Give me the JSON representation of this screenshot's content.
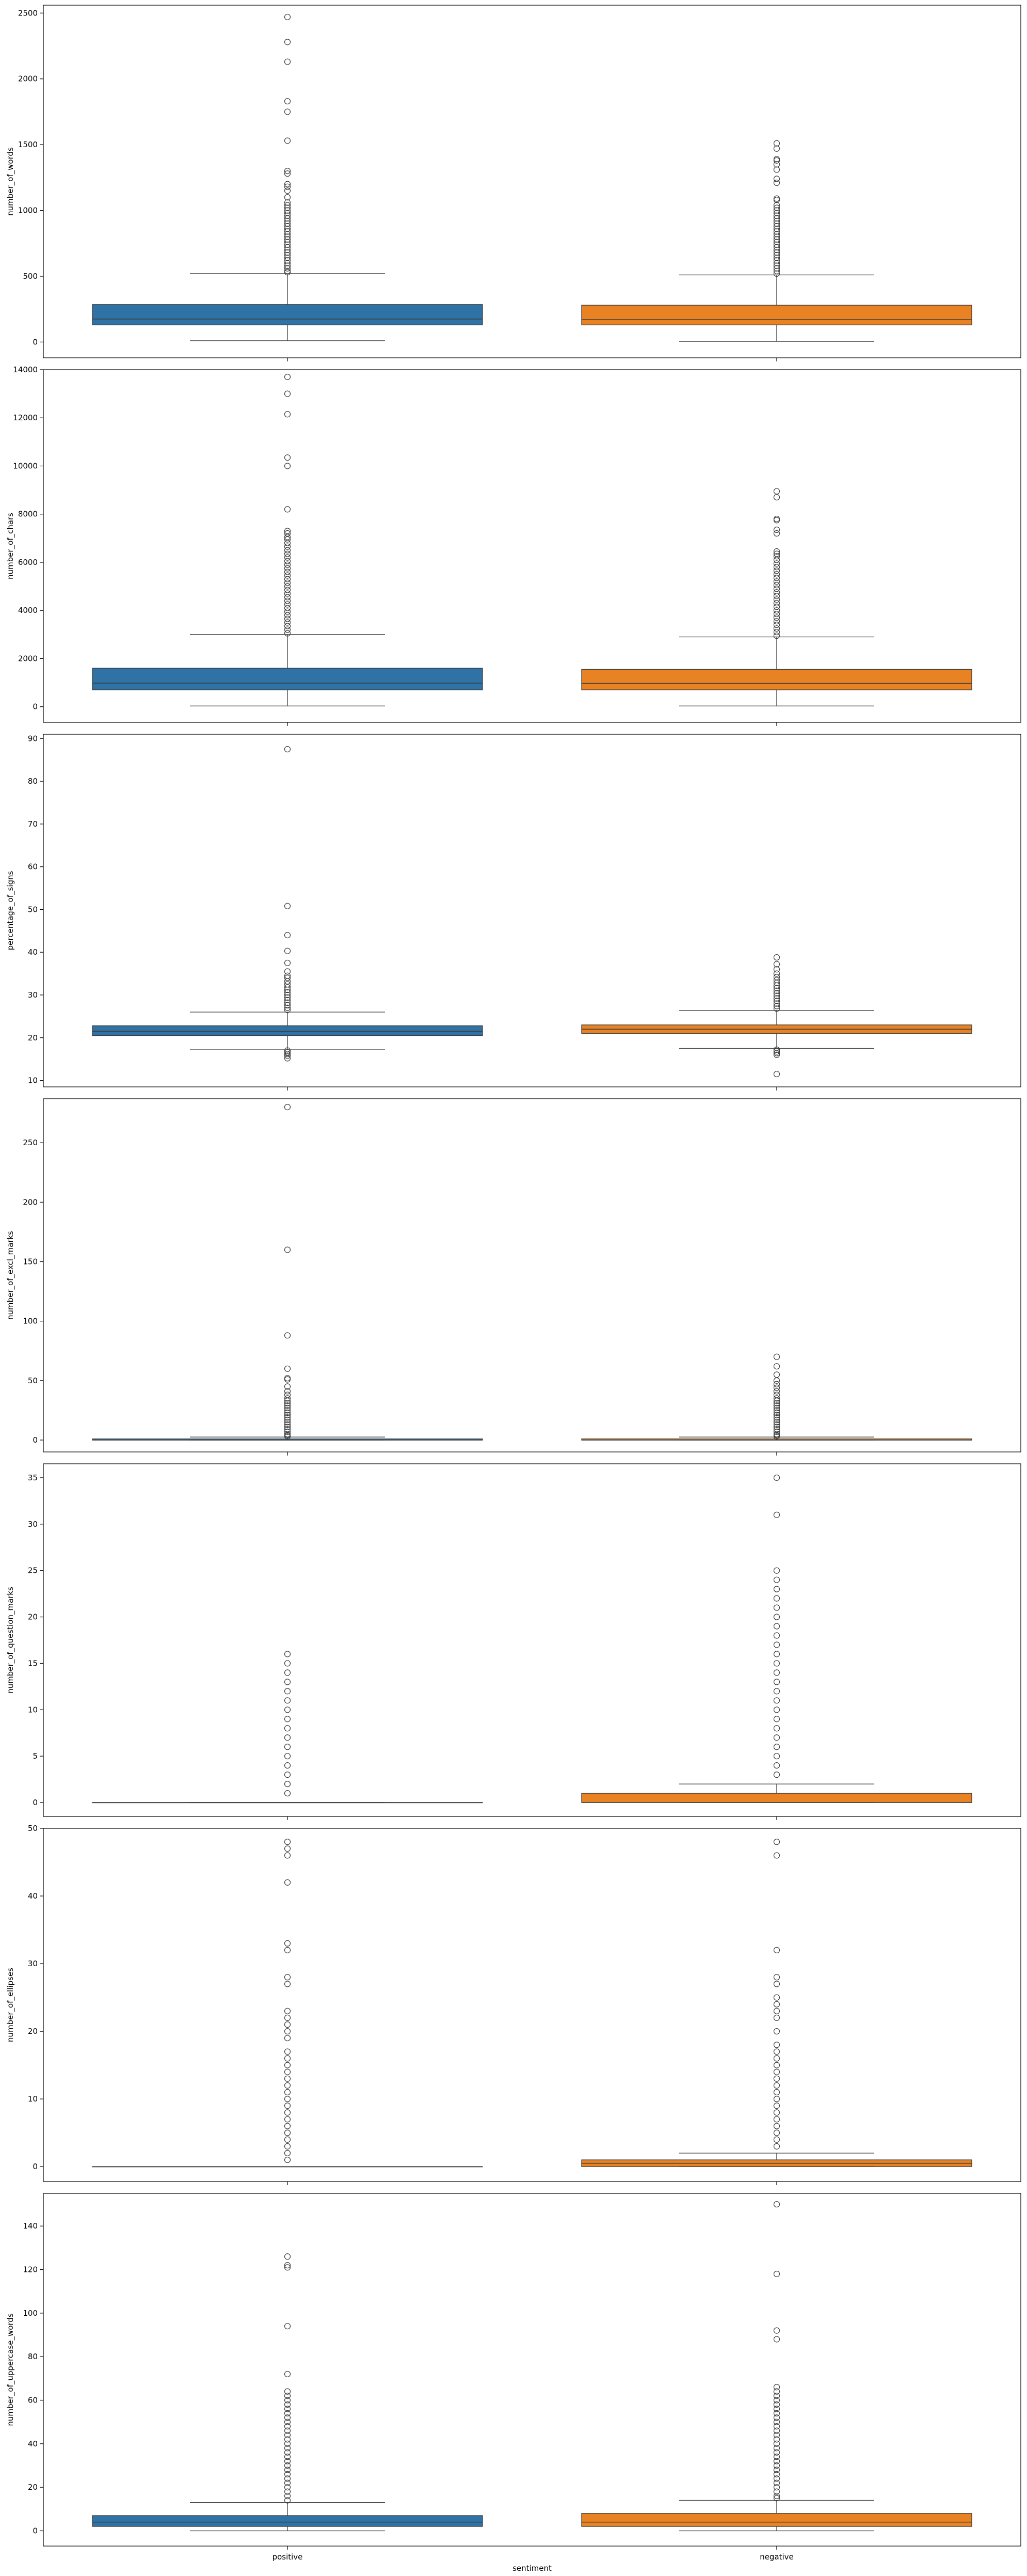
{
  "chart_data": {
    "type": "box",
    "xlabel": "sentiment",
    "categories": [
      "positive",
      "negative"
    ],
    "colors": [
      "#2f72a5",
      "#e98222"
    ],
    "subplots": [
      {
        "ylabel": "number_of_words",
        "ylim": [
          -120,
          2560
        ],
        "yticks": [
          0,
          500,
          1000,
          1500,
          2000,
          2500
        ],
        "boxes": [
          {
            "q1": 130,
            "median": 175,
            "q3": 285,
            "whisker_low": 10,
            "whisker_high": 520,
            "outliers": [
              2470,
              2280,
              2130,
              1830,
              1750,
              1530,
              1300,
              1280,
              1200,
              1180,
              1150,
              1100,
              1060,
              1040,
              1020,
              1000,
              980,
              960,
              940,
              920,
              900,
              880,
              860,
              840,
              820,
              800,
              780,
              760,
              740,
              720,
              700,
              680,
              660,
              640,
              620,
              600,
              580,
              560,
              540,
              530
            ]
          },
          {
            "q1": 130,
            "median": 170,
            "q3": 280,
            "whisker_low": 5,
            "whisker_high": 510,
            "outliers": [
              1510,
              1470,
              1390,
              1380,
              1350,
              1310,
              1240,
              1210,
              1090,
              1080,
              1040,
              1020,
              1000,
              980,
              960,
              940,
              920,
              900,
              880,
              860,
              840,
              820,
              800,
              780,
              760,
              740,
              720,
              700,
              680,
              660,
              640,
              620,
              600,
              580,
              560,
              540,
              520
            ]
          }
        ]
      },
      {
        "ylabel": "number_of_chars",
        "ylim": [
          -650,
          14000
        ],
        "yticks": [
          0,
          2000,
          4000,
          6000,
          8000,
          10000,
          12000,
          14000
        ],
        "boxes": [
          {
            "q1": 700,
            "median": 980,
            "q3": 1600,
            "whisker_low": 30,
            "whisker_high": 3000,
            "outliers": [
              13700,
              13000,
              12150,
              10350,
              10000,
              8200,
              7300,
              7200,
              7050,
              6950,
              6800,
              6650,
              6500,
              6350,
              6200,
              6050,
              5900,
              5750,
              5600,
              5450,
              5300,
              5150,
              5000,
              4850,
              4700,
              4550,
              4400,
              4250,
              4100,
              3950,
              3800,
              3650,
              3500,
              3350,
              3200,
              3050
            ]
          },
          {
            "q1": 700,
            "median": 970,
            "q3": 1550,
            "whisker_low": 30,
            "whisker_high": 2900,
            "outliers": [
              8950,
              8700,
              7800,
              7750,
              7350,
              7200,
              6450,
              6350,
              6250,
              6100,
              5950,
              5800,
              5650,
              5500,
              5350,
              5200,
              5050,
              4900,
              4750,
              4600,
              4450,
              4300,
              4150,
              4000,
              3850,
              3700,
              3550,
              3400,
              3250,
              3100,
              2950
            ]
          }
        ]
      },
      {
        "ylabel": "percentage_of_signs",
        "ylim": [
          8.5,
          91
        ],
        "yticks": [
          10,
          20,
          30,
          40,
          50,
          60,
          70,
          80,
          90
        ],
        "boxes": [
          {
            "q1": 20.5,
            "median": 21.5,
            "q3": 22.8,
            "whisker_low": 17.2,
            "whisker_high": 26,
            "outliers": [
              87.5,
              50.8,
              44,
              40.3,
              37.5,
              35.5,
              34.5,
              34,
              33.2,
              32.5,
              31.8,
              31.2,
              30.6,
              30,
              29.4,
              28.8,
              28.2,
              27.6,
              27,
              26.5,
              17,
              16.6,
              16.2,
              15.8,
              15.2
            ]
          },
          {
            "q1": 21.0,
            "median": 22.0,
            "q3": 23.0,
            "whisker_low": 17.5,
            "whisker_high": 26.4,
            "outliers": [
              38.8,
              37.2,
              36,
              35,
              34.2,
              33.5,
              32.8,
              32.2,
              31.6,
              31,
              30.4,
              29.8,
              29.2,
              28.6,
              28,
              27.4,
              26.8,
              17.2,
              16.8,
              16.4,
              16,
              11.5
            ]
          }
        ]
      },
      {
        "ylabel": "number_of_excl_marks",
        "ylim": [
          -10,
          287
        ],
        "yticks": [
          0,
          50,
          100,
          150,
          200,
          250
        ],
        "boxes": [
          {
            "q1": 0,
            "median": 0,
            "q3": 1,
            "whisker_low": 0,
            "whisker_high": 2.5,
            "outliers": [
              280,
              160,
              88,
              60,
              52,
              51,
              45,
              41,
              38,
              35,
              33,
              31,
              29,
              27,
              25,
              23,
              21,
              19,
              17,
              15,
              13,
              11,
              9,
              7,
              5,
              4,
              3
            ]
          },
          {
            "q1": 0,
            "median": 0,
            "q3": 1,
            "whisker_low": 0,
            "whisker_high": 2.5,
            "outliers": [
              70,
              62,
              55,
              50,
              47,
              44,
              41,
              38,
              35,
              33,
              31,
              29,
              27,
              25,
              23,
              21,
              19,
              17,
              15,
              13,
              11,
              9,
              7,
              5,
              4,
              3
            ]
          }
        ]
      },
      {
        "ylabel": "number_of_question_marks",
        "ylim": [
          -1.5,
          36.5
        ],
        "yticks": [
          0,
          5,
          10,
          15,
          20,
          25,
          30,
          35
        ],
        "boxes": [
          {
            "q1": 0,
            "median": 0,
            "q3": 0,
            "whisker_low": 0,
            "whisker_high": 0,
            "outliers": [
              16,
              15,
              14,
              13,
              12,
              11,
              10,
              9,
              8,
              7,
              6,
              5,
              4,
              3,
              2,
              1
            ]
          },
          {
            "q1": 0,
            "median": 0,
            "q3": 1,
            "whisker_low": 0,
            "whisker_high": 2,
            "outliers": [
              35,
              31,
              25,
              24,
              23,
              22,
              21,
              20,
              19,
              18,
              17,
              16,
              15,
              14,
              13,
              12,
              11,
              10,
              9,
              8,
              7,
              6,
              5,
              4,
              3
            ]
          }
        ]
      },
      {
        "ylabel": "number_of_ellipses",
        "ylim": [
          -2.2,
          50
        ],
        "yticks": [
          0,
          10,
          20,
          30,
          40,
          50
        ],
        "boxes": [
          {
            "q1": 0,
            "median": 0,
            "q3": 0,
            "whisker_low": 0,
            "whisker_high": 0,
            "outliers": [
              48,
              47,
              46,
              42,
              33,
              32,
              28,
              27,
              23,
              22,
              21,
              20,
              19,
              17,
              16,
              15,
              14,
              13,
              12,
              11,
              10,
              9,
              8,
              7,
              6,
              5,
              4,
              3,
              2,
              1
            ]
          },
          {
            "q1": 0,
            "median": 0.5,
            "q3": 1,
            "whisker_low": 0,
            "whisker_high": 2,
            "outliers": [
              48,
              46,
              32,
              28,
              27,
              25,
              24,
              23,
              22,
              20,
              18,
              17,
              16,
              15,
              14,
              13,
              12,
              11,
              10,
              9,
              8,
              7,
              6,
              5,
              4,
              3
            ]
          }
        ]
      },
      {
        "ylabel": "number_of_uppercase_words",
        "ylim": [
          -7,
          155
        ],
        "yticks": [
          0,
          20,
          40,
          60,
          80,
          100,
          120,
          140
        ],
        "boxes": [
          {
            "q1": 2,
            "median": 4,
            "q3": 7,
            "whisker_low": 0,
            "whisker_high": 13,
            "outliers": [
              126,
              122,
              121,
              94,
              72,
              64,
              62,
              60,
              58,
              56,
              54,
              52,
              50,
              48,
              46,
              44,
              42,
              40,
              38,
              36,
              34,
              32,
              30,
              28,
              26,
              24,
              22,
              20,
              18,
              16,
              14
            ]
          },
          {
            "q1": 2,
            "median": 4,
            "q3": 8,
            "whisker_low": 0,
            "whisker_high": 14,
            "outliers": [
              150,
              118,
              92,
              88,
              66,
              64,
              62,
              60,
              58,
              56,
              54,
              52,
              50,
              48,
              46,
              44,
              42,
              40,
              38,
              36,
              34,
              32,
              30,
              28,
              26,
              24,
              22,
              20,
              18,
              16,
              15
            ]
          }
        ]
      }
    ]
  }
}
